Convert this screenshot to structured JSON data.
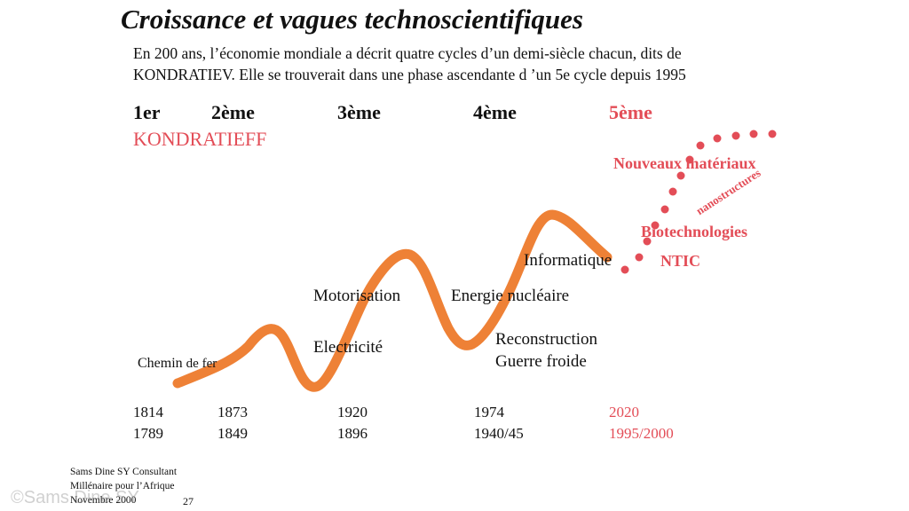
{
  "title": "Croissance et vagues technoscientifiques",
  "subtitle_line1": "En 200 ans, l’économie mondiale a décrit quatre cycles d’un demi-siècle chacun, dits de",
  "subtitle_line2": "KONDRATIEV.  Elle se trouverait dans une phase ascendante d ’un 5e cycle depuis 1995",
  "cycles": [
    "1er",
    "2ème",
    "3ème",
    "4ème",
    "5ème"
  ],
  "kondratieff_label": "KONDRATIEFF",
  "innovations": {
    "chemin_prefix": "Chemin ",
    "chemin_suffix": "de fer",
    "motorisation": "Motorisation",
    "electricite": "Electricité",
    "energie": "Energie nucléaire",
    "reconstruction": "Reconstruction",
    "guerre": "Guerre froide",
    "informatique": "Informatique",
    "ntic": "NTIC",
    "biotech": "Biotechnologies",
    "nanostructures": "nanostructures",
    "materiaux": "Nouveaux  matériaux"
  },
  "years": {
    "peaks": [
      "1814",
      "1873",
      "1920",
      "1974",
      "2020"
    ],
    "troughs": [
      "1789",
      "1849",
      "1896",
      "1940/45",
      "1995/2000"
    ]
  },
  "footer": {
    "line1": "Sams  Dine  SY Consultant",
    "line2": "Millénaire  pour  l’Afrique",
    "line3": "Novembre  2000",
    "page": "27"
  },
  "watermark": "©Sams Dine SY",
  "colors": {
    "wave": "#ee8136",
    "future": "#e34d57",
    "text": "#111111"
  }
}
